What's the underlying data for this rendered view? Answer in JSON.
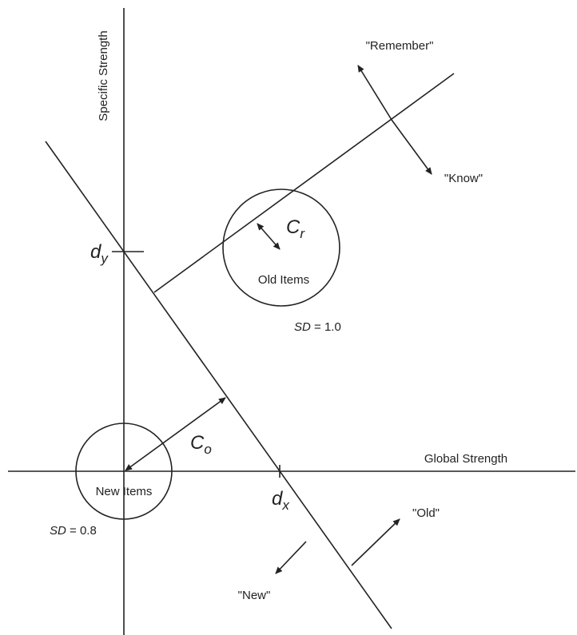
{
  "axes": {
    "y_label": "Specific Strength",
    "x_label": "Global Strength"
  },
  "responses": {
    "remember": "\"Remember\"",
    "know": "\"Know\"",
    "old": "\"Old\"",
    "new": "\"New\""
  },
  "distributions": [
    {
      "label": "Old Items",
      "sd_symbol": "SD",
      "sd_text": "= 1.0"
    },
    {
      "label": "New Items",
      "sd_symbol": "SD",
      "sd_text": "= 0.8"
    }
  ],
  "criteria": {
    "d_y": {
      "main": "d",
      "sub": "y"
    },
    "d_x": {
      "main": "d",
      "sub": "x"
    },
    "c_r": {
      "main": "C",
      "sub": "r"
    },
    "c_o": {
      "main": "C",
      "sub": "o"
    }
  }
}
